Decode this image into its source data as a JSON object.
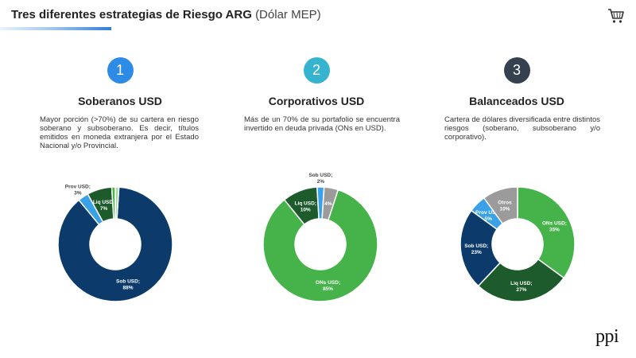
{
  "header": {
    "title_main": "Tres diferentes estrategias de Riesgo ARG",
    "title_sub": "(Dólar MEP)"
  },
  "icons": {
    "cart": "shopping-cart-icon"
  },
  "columns": [
    {
      "number": "1",
      "circle_color": "#2d8be6",
      "title": "Soberanos USD",
      "description": "Mayor porción (>70%) de su cartera en riesgo soberano y subsoberano. Es decir, títulos emitidos en moneda extranjera por el Estado Nacional y/o Provincial."
    },
    {
      "number": "2",
      "circle_color": "#36b3cf",
      "title": "Corporativos USD",
      "description": "Más de un 70% de su portafolio se encuentra invertido en deuda privada (ONs en USD)."
    },
    {
      "number": "3",
      "circle_color": "#36414f",
      "title": "Balanceados USD",
      "description": "Cartera de dólares diversificada entre distintos riesgos (soberano, subsoberano y/o corporativo)."
    }
  ],
  "chart_data": [
    {
      "type": "pie",
      "categories": [
        "Sob USD;",
        "Prov USD;",
        "Liq USD;",
        "",
        ""
      ],
      "values": [
        88,
        3,
        7,
        1,
        1
      ],
      "value_labels": [
        "88%",
        "3%",
        "7%",
        "",
        ""
      ],
      "colors": [
        "#0c3b6b",
        "#3aa0e8",
        "#1d5a2c",
        "#45b349",
        "#a9d9a4"
      ]
    },
    {
      "type": "pie",
      "categories": [
        "ONs USD;",
        "Liq USD;",
        "Sob USD;",
        ""
      ],
      "values": [
        85,
        10,
        2,
        4
      ],
      "value_labels": [
        "85%",
        "10%",
        "2%",
        "4%"
      ],
      "colors": [
        "#45b349",
        "#1d5a2c",
        "#3aa0e8",
        "#9b9b9b"
      ]
    },
    {
      "type": "pie",
      "categories": [
        "ONs USD;",
        "Liq USD;",
        "Sob USD;",
        "Prov USD;",
        "Otros"
      ],
      "values": [
        35,
        27,
        23,
        5,
        10
      ],
      "value_labels": [
        "35%",
        "27%",
        "23%",
        "5%",
        "10%"
      ],
      "colors": [
        "#45b349",
        "#1d5a2c",
        "#0c3b6b",
        "#3aa0e8",
        "#9b9b9b"
      ]
    }
  ],
  "logo": {
    "text": "ppi"
  }
}
